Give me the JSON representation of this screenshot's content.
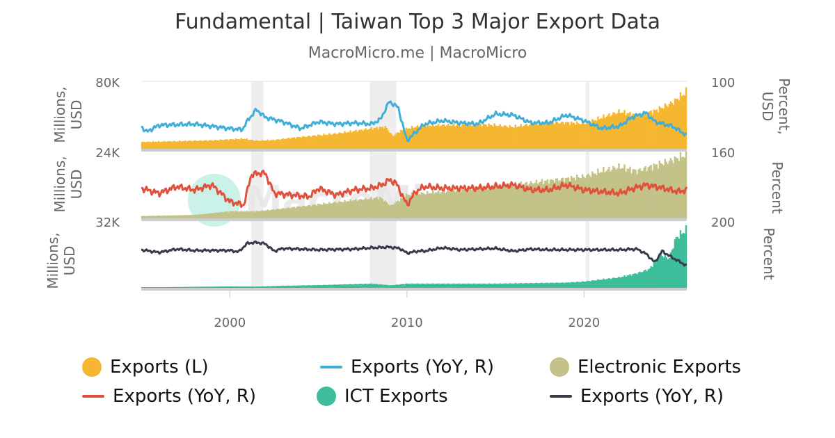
{
  "chart_data": {
    "type": "line",
    "title": "Fundamental | Taiwan Top 3 Major Export Data",
    "subtitle": "MacroMicro.me | MacroMicro",
    "watermark": "MacroMicro",
    "xaxis": {
      "range": [
        1995,
        2025.8
      ],
      "ticks": [
        2000,
        2010,
        2020
      ]
    },
    "recession_shading": [
      [
        2001.2,
        2001.9
      ],
      [
        2007.9,
        2009.4
      ],
      [
        2020.1,
        2020.3
      ]
    ],
    "panels": [
      {
        "name": "Exports",
        "left_axis": {
          "title": "Millions, USD",
          "range": [
            0,
            80000
          ],
          "top_label": "80K"
        },
        "right_axis": {
          "title": "Percent, USD",
          "range": [
            160,
            100
          ],
          "top_label": "100"
        },
        "series": [
          {
            "name": "Exports (L)",
            "kind": "bar",
            "color": "#f5b731",
            "points": [
              [
                1995,
                8000
              ],
              [
                1997,
                9000
              ],
              [
                1999,
                10000
              ],
              [
                2000.8,
                12000
              ],
              [
                2001.5,
                9500
              ],
              [
                2002.5,
                10500
              ],
              [
                2004,
                14000
              ],
              [
                2006,
                18000
              ],
              [
                2007,
                21000
              ],
              [
                2008,
                24000
              ],
              [
                2008.8,
                26000
              ],
              [
                2009.2,
                15000
              ],
              [
                2009.6,
                21000
              ],
              [
                2010.2,
                25000
              ],
              [
                2011,
                28000
              ],
              [
                2012,
                28000
              ],
              [
                2014,
                29000
              ],
              [
                2015,
                28000
              ],
              [
                2016,
                26000
              ],
              [
                2017,
                29000
              ],
              [
                2018,
                31000
              ],
              [
                2019,
                31000
              ],
              [
                2020,
                30000
              ],
              [
                2021,
                37000
              ],
              [
                2022,
                44000
              ],
              [
                2023,
                40000
              ],
              [
                2024,
                45000
              ],
              [
                2025,
                55000
              ],
              [
                2025.8,
                68000
              ]
            ]
          },
          {
            "name": "Exports (YoY, R)",
            "kind": "line",
            "color": "#3fafd7",
            "points": [
              [
                1995,
                120
              ],
              [
                1995.3,
                115
              ],
              [
                1996,
                121
              ],
              [
                1998,
                122
              ],
              [
                2000,
                118
              ],
              [
                2000.7,
                117
              ],
              [
                2001,
                125
              ],
              [
                2001.5,
                135
              ],
              [
                2002,
                128
              ],
              [
                2003,
                124
              ],
              [
                2004,
                118
              ],
              [
                2005,
                124
              ],
              [
                2006,
                122
              ],
              [
                2007,
                123
              ],
              [
                2008,
                122
              ],
              [
                2008.5,
                126
              ],
              [
                2009,
                142
              ],
              [
                2009.5,
                137
              ],
              [
                2010,
                107
              ],
              [
                2010.5,
                115
              ],
              [
                2011,
                122
              ],
              [
                2012,
                125
              ],
              [
                2013,
                123
              ],
              [
                2014,
                122
              ],
              [
                2015,
                131
              ],
              [
                2016,
                130
              ],
              [
                2017,
                123
              ],
              [
                2018,
                123
              ],
              [
                2019,
                130
              ],
              [
                2020,
                125
              ],
              [
                2021,
                118
              ],
              [
                2022,
                120
              ],
              [
                2022.7,
                128
              ],
              [
                2023.5,
                132
              ],
              [
                2024,
                124
              ],
              [
                2025,
                120
              ],
              [
                2025.8,
                112
              ]
            ]
          }
        ]
      },
      {
        "name": "Electronic Exports",
        "left_axis": {
          "title": "Millions, USD",
          "range": [
            0,
            24000
          ],
          "top_label": "24K"
        },
        "right_axis": {
          "title": "Percent",
          "range": [
            200,
            160
          ],
          "top_label": "160"
        },
        "series": [
          {
            "name": "Electronic Exports",
            "kind": "bar",
            "color": "#c3c289",
            "points": [
              [
                1995,
                800
              ],
              [
                1998,
                1200
              ],
              [
                2000,
                2500
              ],
              [
                2001.5,
                2500
              ],
              [
                2003,
                3500
              ],
              [
                2005,
                5000
              ],
              [
                2007,
                6500
              ],
              [
                2008.5,
                7500
              ],
              [
                2009.1,
                4500
              ],
              [
                2010,
                8500
              ],
              [
                2012,
                9500
              ],
              [
                2014,
                11000
              ],
              [
                2016,
                12000
              ],
              [
                2018,
                13500
              ],
              [
                2020,
                15000
              ],
              [
                2021,
                17000
              ],
              [
                2022,
                18500
              ],
              [
                2023,
                17000
              ],
              [
                2024,
                19000
              ],
              [
                2025,
                21000
              ],
              [
                2025.8,
                23000
              ]
            ]
          },
          {
            "name": "Exports (YoY, R)",
            "kind": "line",
            "color": "#e0503a",
            "points": [
              [
                1995,
                178
              ],
              [
                1996,
                175
              ],
              [
                1997,
                179
              ],
              [
                1998,
                177
              ],
              [
                1999,
                180
              ],
              [
                2000,
                170
              ],
              [
                2000.8,
                168
              ],
              [
                2001.2,
                186
              ],
              [
                2001.6,
                187
              ],
              [
                2002,
                187
              ],
              [
                2002.5,
                175
              ],
              [
                2003.5,
                174
              ],
              [
                2004.5,
                173
              ],
              [
                2005,
                178
              ],
              [
                2006,
                174
              ],
              [
                2007,
                177
              ],
              [
                2008,
                178
              ],
              [
                2008.6,
                180
              ],
              [
                2009,
                183
              ],
              [
                2009.4,
                181
              ],
              [
                2010,
                168
              ],
              [
                2010.5,
                176
              ],
              [
                2011,
                179
              ],
              [
                2012,
                178
              ],
              [
                2014,
                178
              ],
              [
                2016,
                180
              ],
              [
                2017,
                177
              ],
              [
                2018,
                177
              ],
              [
                2019,
                180
              ],
              [
                2020,
                177
              ],
              [
                2021,
                176
              ],
              [
                2022,
                175
              ],
              [
                2022.8,
                178
              ],
              [
                2023.5,
                180
              ],
              [
                2024.5,
                178
              ],
              [
                2025.3,
                176
              ],
              [
                2025.8,
                177
              ]
            ]
          }
        ]
      },
      {
        "name": "ICT Exports",
        "left_axis": {
          "title": "Millions, USD",
          "range": [
            0,
            32000
          ],
          "top_label": "32K"
        },
        "right_axis": {
          "title": "Percent",
          "range": [
            200,
            100
          ],
          "top_label": "200"
        },
        "series": [
          {
            "name": "ICT Exports",
            "kind": "bar",
            "color": "#3dbd9a",
            "points": [
              [
                1995,
                200
              ],
              [
                2000,
                700
              ],
              [
                2001.5,
                600
              ],
              [
                2003,
                1000
              ],
              [
                2005,
                1300
              ],
              [
                2008,
                2000
              ],
              [
                2009.1,
                1200
              ],
              [
                2010,
                2000
              ],
              [
                2015,
                2000
              ],
              [
                2019,
                2500
              ],
              [
                2020,
                3000
              ],
              [
                2021,
                4000
              ],
              [
                2022,
                5000
              ],
              [
                2023,
                7000
              ],
              [
                2023.7,
                9000
              ],
              [
                2024.3,
                16000
              ],
              [
                2024.8,
                14000
              ],
              [
                2025.2,
                24000
              ],
              [
                2025.8,
                28000
              ]
            ]
          },
          {
            "name": "Exports (YoY, R)",
            "kind": "line",
            "color": "#363b4a",
            "points": [
              [
                1995,
                157
              ],
              [
                1996,
                153
              ],
              [
                1997,
                158
              ],
              [
                1998,
                156
              ],
              [
                2000,
                156
              ],
              [
                2000.5,
                154
              ],
              [
                2001,
                167
              ],
              [
                2001.5,
                168
              ],
              [
                2002,
                166
              ],
              [
                2002.5,
                155
              ],
              [
                2003,
                159
              ],
              [
                2005,
                157
              ],
              [
                2007,
                158
              ],
              [
                2008,
                160
              ],
              [
                2009,
                161
              ],
              [
                2009.6,
                159
              ],
              [
                2010,
                152
              ],
              [
                2010.6,
                155
              ],
              [
                2011,
                155
              ],
              [
                2012,
                160
              ],
              [
                2013,
                157
              ],
              [
                2014,
                158
              ],
              [
                2015,
                159
              ],
              [
                2016,
                155
              ],
              [
                2017,
                158
              ],
              [
                2018,
                157
              ],
              [
                2019,
                157
              ],
              [
                2020,
                157
              ],
              [
                2021,
                157
              ],
              [
                2022,
                157
              ],
              [
                2023,
                158
              ],
              [
                2023.5,
                151
              ],
              [
                2024,
                138
              ],
              [
                2024.4,
                155
              ],
              [
                2025,
                145
              ],
              [
                2025.8,
                133
              ]
            ]
          }
        ]
      }
    ],
    "legend": [
      {
        "label": "Exports (L)",
        "color": "#f5b731",
        "symbol": "circle"
      },
      {
        "label": "Exports (YoY, R)",
        "color": "#3fafd7",
        "symbol": "line"
      },
      {
        "label": "Electronic Exports",
        "color": "#c3c289",
        "symbol": "circle"
      },
      {
        "label": "Exports (YoY, R)",
        "color": "#e0503a",
        "symbol": "line"
      },
      {
        "label": "ICT Exports",
        "color": "#3dbd9a",
        "symbol": "circle"
      },
      {
        "label": "Exports (YoY, R)",
        "color": "#363b4a",
        "symbol": "line"
      }
    ]
  }
}
